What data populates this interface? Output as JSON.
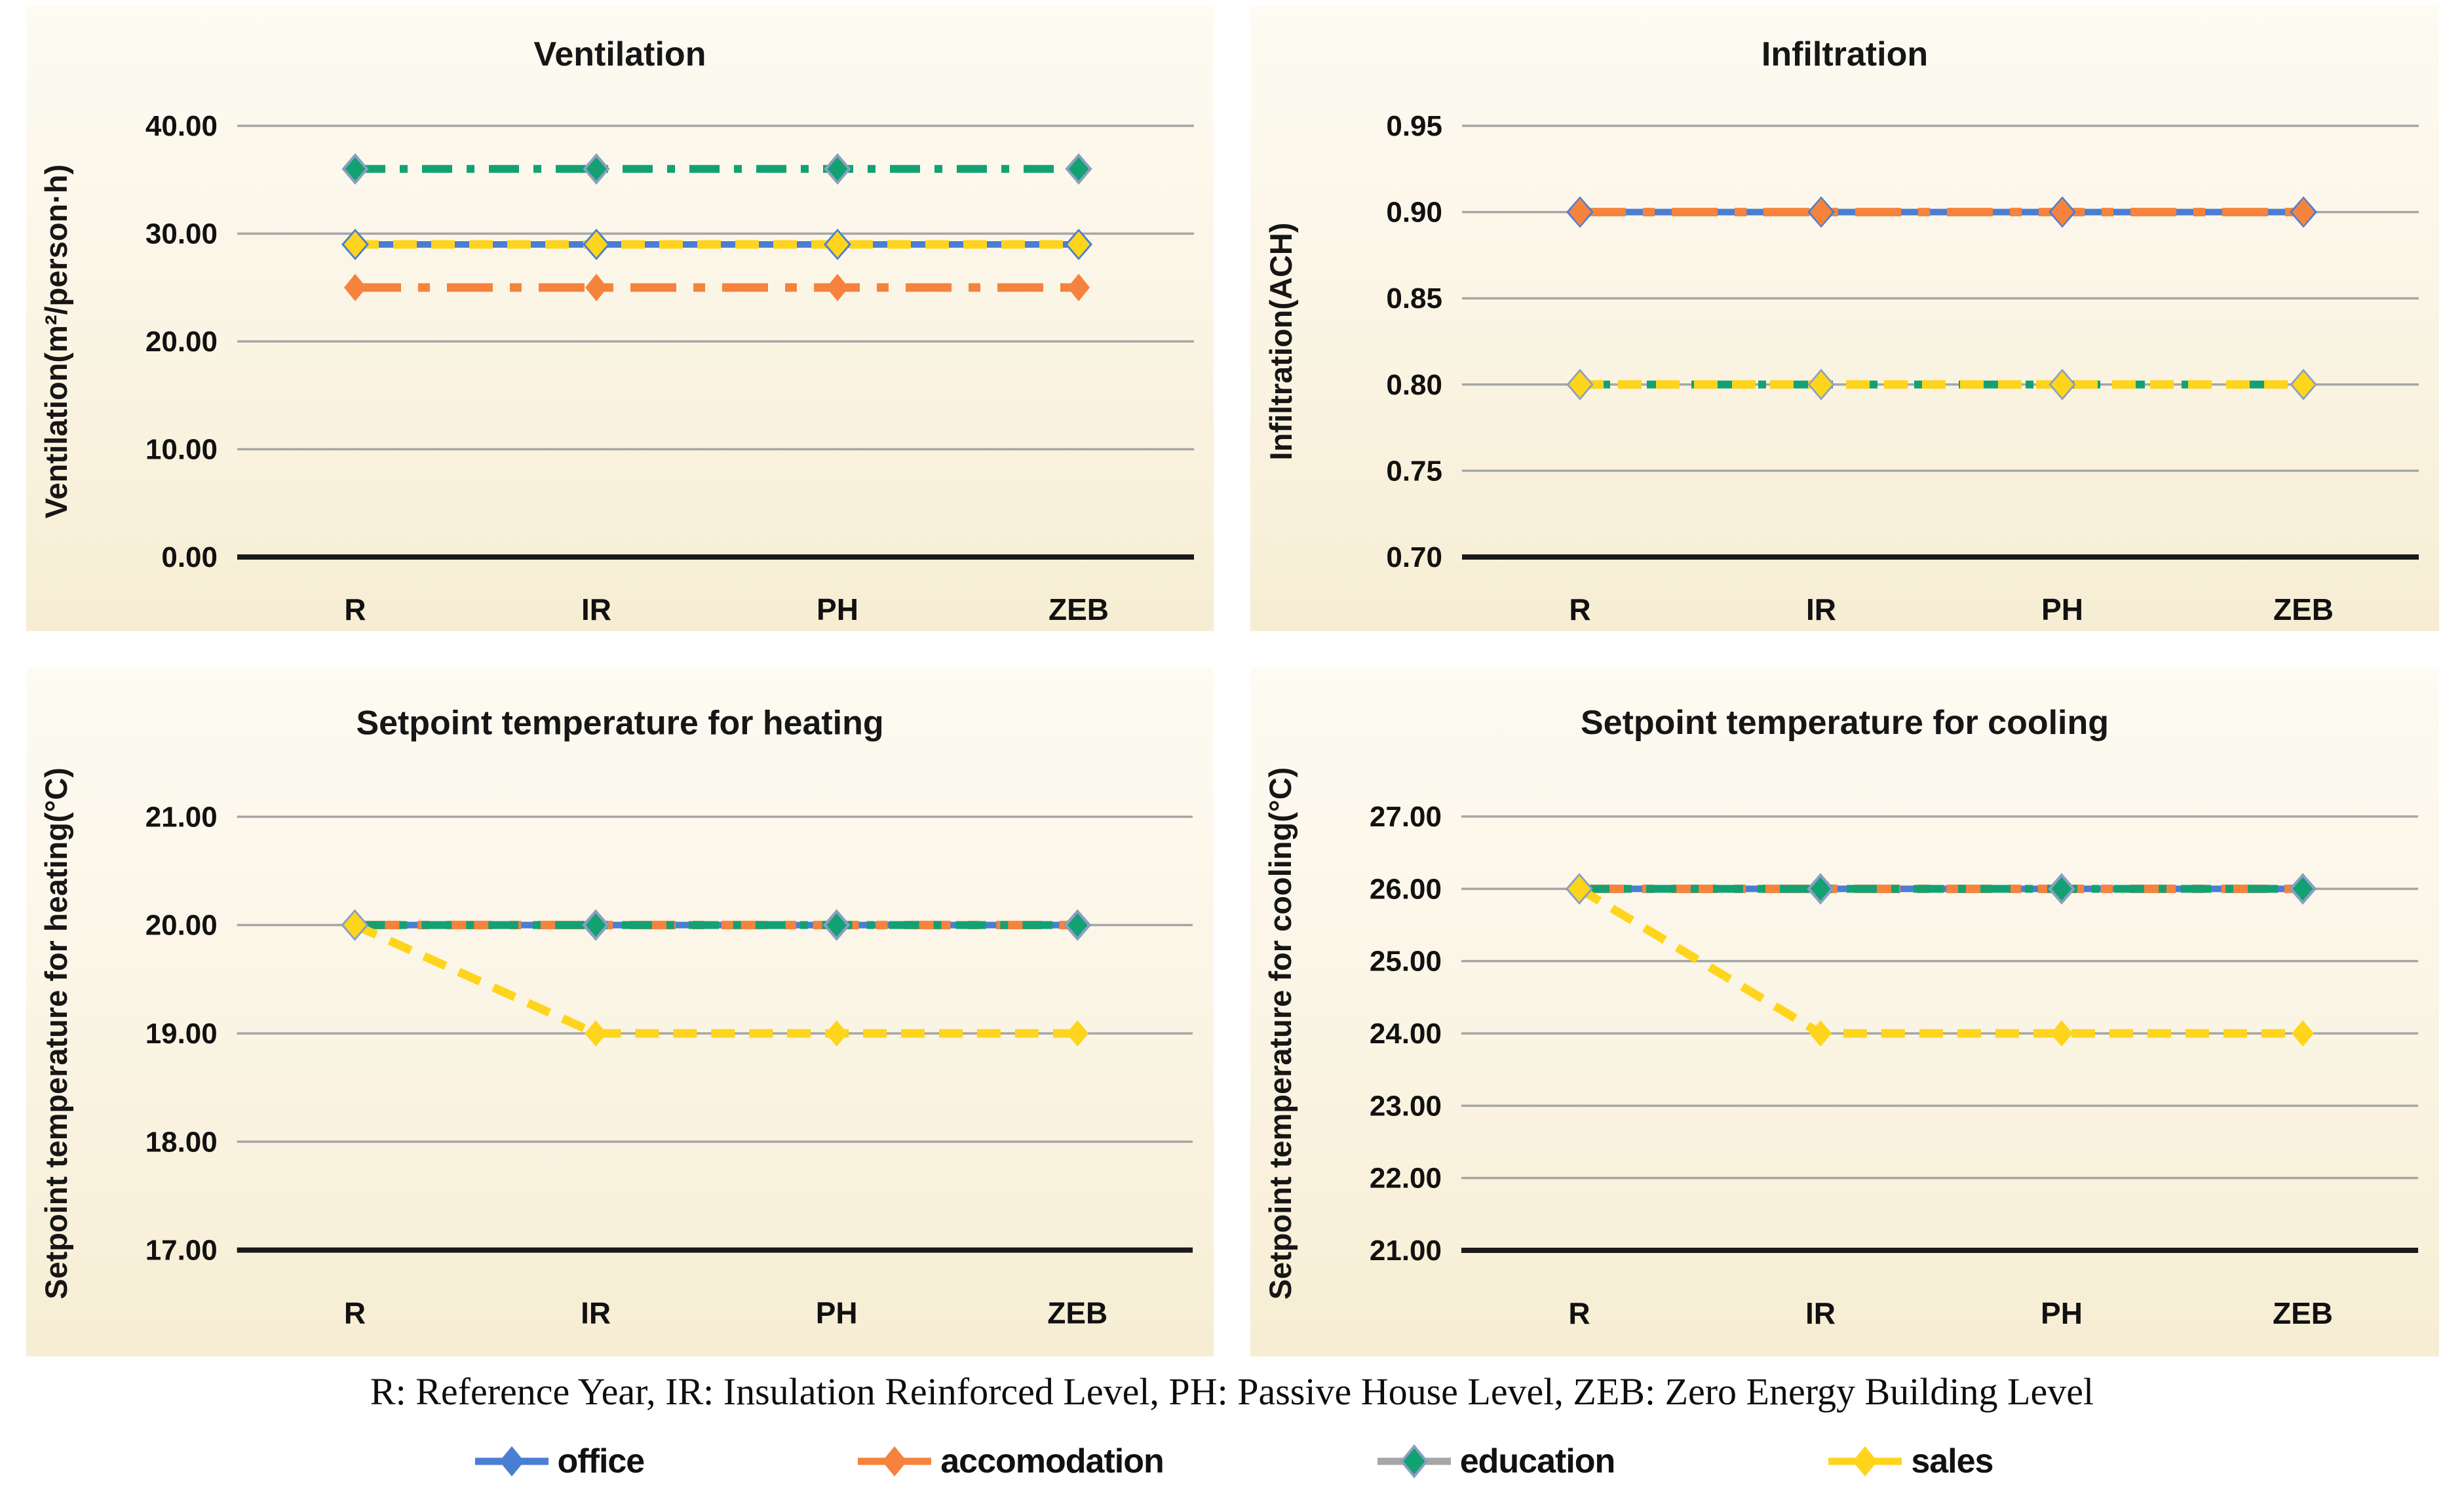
{
  "caption": "R: Reference Year, IR: Insulation Reinforced Level, PH: Passive House Level, ZEB: Zero Energy Building Level",
  "legend": {
    "items": [
      {
        "label": "office",
        "color": "#4a7ed3",
        "stub_color": "#4a7ed3",
        "marker_stroke": "#4a7ed3"
      },
      {
        "label": "accomodation",
        "color": "#f6833d",
        "stub_color": "#f6833d",
        "marker_stroke": "#f6833d"
      },
      {
        "label": "education",
        "color": "#13a173",
        "stub_color": "#a6a6a6",
        "marker_stroke": "#8aa0c0"
      },
      {
        "label": "sales",
        "color": "#ffd41c",
        "stub_color": "#ffd41c",
        "marker_stroke": "#ffd41c"
      }
    ]
  },
  "series_styles": {
    "office": {
      "color": "#4a7ed3",
      "dash": "solid"
    },
    "accomodation": {
      "color": "#f6833d",
      "dash": "dashdot-long"
    },
    "education": {
      "color": "#13a173",
      "dash": "dashdot",
      "marker_stroke": "#8aa0c0"
    },
    "sales": {
      "color": "#ffd41c",
      "dash": "dash"
    }
  },
  "colors": {
    "grid_line": "#a6a6a6",
    "axis_line": "#1a1a1a",
    "text": "#111111",
    "panel_bg_top": "#fdfbf2",
    "panel_bg_bottom": "#f6edd3"
  },
  "chart_data": [
    {
      "type": "line",
      "title": "Ventilation",
      "ylabel": "Ventilation(m²/person·h)",
      "xlabel": "",
      "categories": [
        "R",
        "IR",
        "PH",
        "ZEB"
      ],
      "yticks": [
        {
          "label": "40.00",
          "value": 40
        },
        {
          "label": "30.00",
          "value": 30
        },
        {
          "label": "20.00",
          "value": 20
        },
        {
          "label": "10.00",
          "value": 10
        },
        {
          "label": "0.00",
          "value": 0
        }
      ],
      "ylim": [
        0,
        40
      ],
      "grid": true,
      "legend_position": "shared-bottom",
      "series": [
        {
          "name": "office",
          "values": [
            29,
            29,
            29,
            29
          ]
        },
        {
          "name": "accomodation",
          "values": [
            25,
            25,
            25,
            25
          ]
        },
        {
          "name": "education",
          "values": [
            36,
            36,
            36,
            36
          ]
        },
        {
          "name": "sales",
          "values": [
            29,
            29,
            29,
            29
          ]
        }
      ]
    },
    {
      "type": "line",
      "title": "Infiltration",
      "ylabel": "Infiltration(ACH)",
      "xlabel": "",
      "categories": [
        "R",
        "IR",
        "PH",
        "ZEB"
      ],
      "yticks": [
        {
          "label": "0.95",
          "value": 0.95
        },
        {
          "label": "0.90",
          "value": 0.9
        },
        {
          "label": "0.85",
          "value": 0.85
        },
        {
          "label": "0.80",
          "value": 0.8
        },
        {
          "label": "0.75",
          "value": 0.75
        },
        {
          "label": "0.70",
          "value": 0.7
        }
      ],
      "ylim": [
        0.7,
        0.95
      ],
      "grid": true,
      "legend_position": "shared-bottom",
      "series": [
        {
          "name": "office",
          "values": [
            0.9,
            0.9,
            0.9,
            0.9
          ]
        },
        {
          "name": "accomodation",
          "values": [
            0.9,
            0.9,
            0.9,
            0.9
          ]
        },
        {
          "name": "education",
          "values": [
            0.8,
            0.8,
            0.8,
            0.8
          ]
        },
        {
          "name": "sales",
          "values": [
            0.8,
            0.8,
            0.8,
            0.8
          ]
        }
      ]
    },
    {
      "type": "line",
      "title": "Setpoint temperature for heating",
      "ylabel": "Setpoint temperature for heating(°C)",
      "xlabel": "",
      "categories": [
        "R",
        "IR",
        "PH",
        "ZEB"
      ],
      "yticks": [
        {
          "label": "21.00",
          "value": 21
        },
        {
          "label": "20.00",
          "value": 20
        },
        {
          "label": "19.00",
          "value": 19
        },
        {
          "label": "18.00",
          "value": 18
        },
        {
          "label": "17.00",
          "value": 17
        }
      ],
      "ylim": [
        17,
        21
      ],
      "grid": true,
      "legend_position": "shared-bottom",
      "series": [
        {
          "name": "office",
          "values": [
            20,
            20,
            20,
            20
          ]
        },
        {
          "name": "accomodation",
          "values": [
            20,
            20,
            20,
            20
          ]
        },
        {
          "name": "education",
          "values": [
            20,
            20,
            20,
            20
          ]
        },
        {
          "name": "sales",
          "values": [
            20,
            19,
            19,
            19
          ]
        }
      ]
    },
    {
      "type": "line",
      "title": "Setpoint temperature for cooling",
      "ylabel": "Setpoint temperature for cooling(°C)",
      "xlabel": "",
      "categories": [
        "R",
        "IR",
        "PH",
        "ZEB"
      ],
      "yticks": [
        {
          "label": "27.00",
          "value": 27
        },
        {
          "label": "26.00",
          "value": 26
        },
        {
          "label": "25.00",
          "value": 25
        },
        {
          "label": "24.00",
          "value": 24
        },
        {
          "label": "23.00",
          "value": 23
        },
        {
          "label": "22.00",
          "value": 22
        },
        {
          "label": "21.00",
          "value": 21
        }
      ],
      "ylim": [
        21,
        27
      ],
      "grid": true,
      "legend_position": "shared-bottom",
      "series": [
        {
          "name": "office",
          "values": [
            26,
            26,
            26,
            26
          ]
        },
        {
          "name": "accomodation",
          "values": [
            26,
            26,
            26,
            26
          ]
        },
        {
          "name": "education",
          "values": [
            26,
            26,
            26,
            26
          ]
        },
        {
          "name": "sales",
          "values": [
            26,
            24,
            24,
            24
          ]
        }
      ]
    }
  ]
}
